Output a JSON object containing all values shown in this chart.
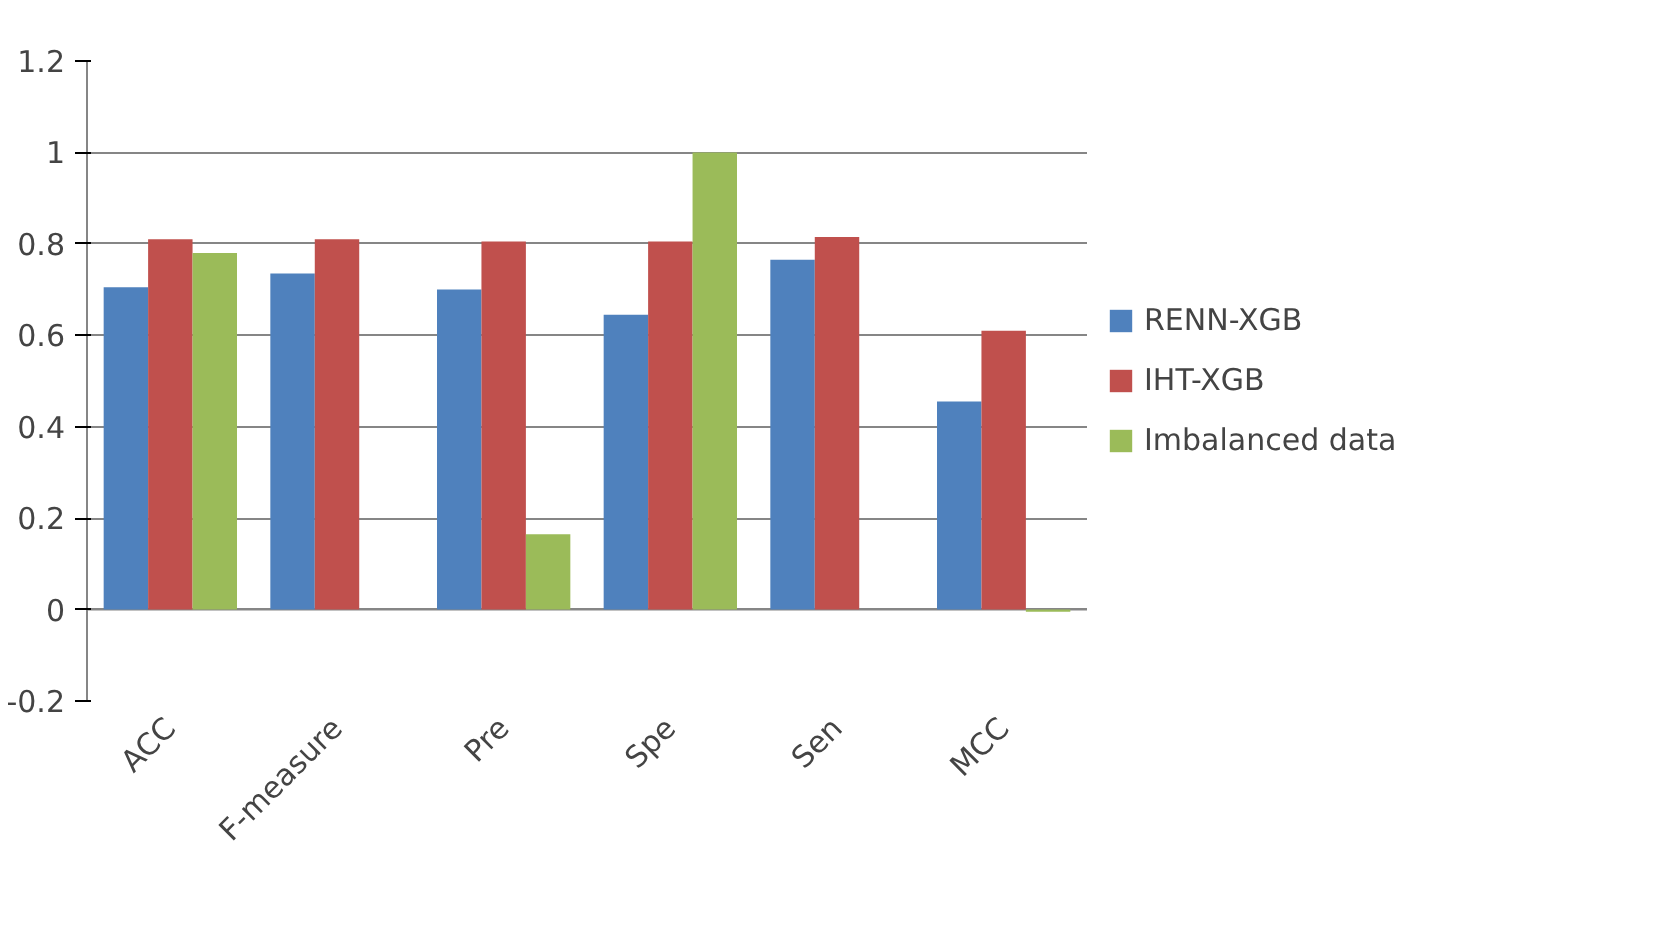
{
  "chart_data": {
    "type": "bar",
    "categories": [
      "ACC",
      "F-measure",
      "Pre",
      "Spe",
      "Sen",
      "MCC"
    ],
    "series": [
      {
        "name": "RENN-XGB",
        "color": "#4f81bd",
        "values": [
          0.705,
          0.735,
          0.7,
          0.645,
          0.765,
          0.455
        ]
      },
      {
        "name": "IHT-XGB",
        "color": "#c0504d",
        "values": [
          0.81,
          0.81,
          0.805,
          0.805,
          0.815,
          0.61
        ]
      },
      {
        "name": "Imbalanced data",
        "color": "#9bbb59",
        "values": [
          0.78,
          0,
          0.165,
          1.0,
          0,
          -0.005
        ]
      }
    ],
    "ylim": [
      -0.2,
      1.2
    ],
    "yticks": [
      -0.2,
      0,
      0.2,
      0.4,
      0.6,
      0.8,
      1,
      1.2
    ],
    "grid": "y",
    "legend": "right"
  }
}
